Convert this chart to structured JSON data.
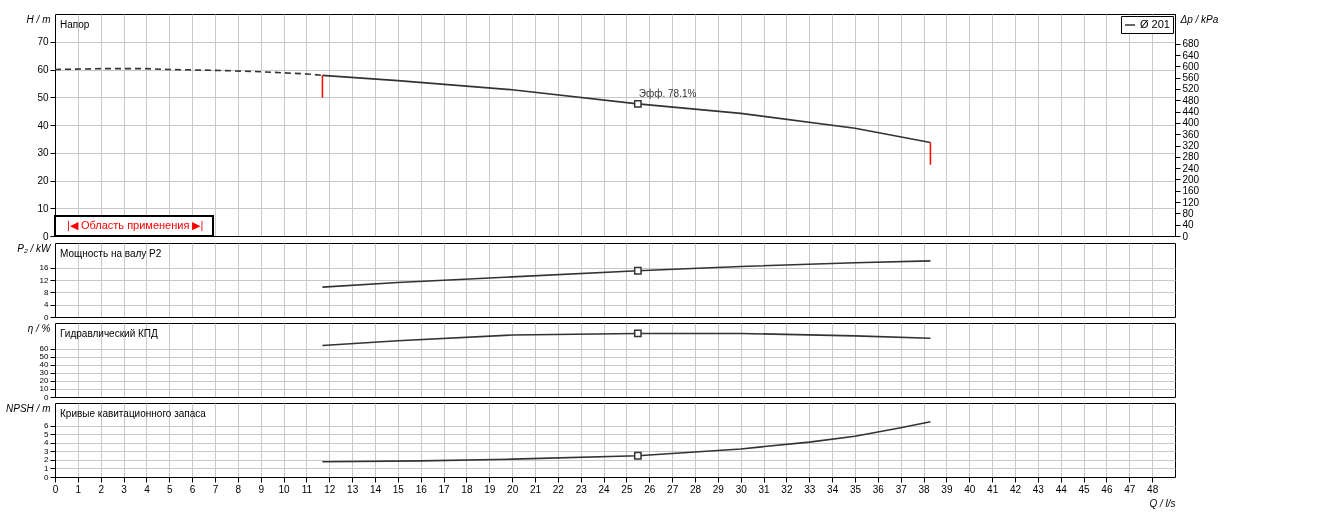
{
  "chart_data": [
    {
      "type": "line",
      "title": "Напор",
      "ylabel": "H / m",
      "y2label": "Δp / kPa",
      "xlim": [
        0,
        49
      ],
      "xticks": [
        0,
        1,
        2,
        3,
        4,
        5,
        6,
        7,
        8,
        9,
        10,
        11,
        12,
        13,
        14,
        15,
        16,
        17,
        18,
        19,
        20,
        21,
        22,
        23,
        24,
        25,
        26,
        27,
        28,
        29,
        30,
        31,
        32,
        33,
        34,
        35,
        36,
        37,
        38,
        39,
        40,
        41,
        42,
        43,
        44,
        45,
        46,
        47,
        48
      ],
      "ylim": [
        0,
        80
      ],
      "yticks": [
        0,
        10,
        20,
        30,
        40,
        50,
        60,
        70
      ],
      "y2lim": [
        0,
        785
      ],
      "y2ticks": [
        0,
        40,
        80,
        120,
        160,
        200,
        240,
        280,
        320,
        360,
        400,
        440,
        480,
        520,
        560,
        600,
        640,
        680
      ],
      "grid": true,
      "legend": "top right",
      "tick_labels": "y",
      "series": [
        {
          "name": "Ø 201",
          "color": "#333333",
          "x": [
            11.7,
            15,
            20,
            25.5,
            30,
            35,
            38.3
          ],
          "values": [
            57.9,
            56.0,
            52.7,
            47.6,
            44.2,
            38.8,
            33.7
          ]
        },
        {
          "color": "#333333",
          "line_style": "dashed",
          "x": [
            0,
            2,
            4,
            5,
            7,
            9,
            11,
            11.7
          ],
          "values": [
            60.0,
            60.3,
            60.3,
            60.0,
            59.7,
            59.2,
            58.4,
            57.9
          ]
        },
        {
          "type": "scatter",
          "marker": "square",
          "color": "#333333",
          "x": [
            25.5
          ],
          "values": [
            47.6
          ]
        }
      ],
      "ref_lines": [
        {
          "axis": "x",
          "value": 11.7,
          "color": "#ff0000"
        },
        {
          "axis": "x",
          "value": 38.3,
          "color": "#ff0000"
        }
      ],
      "annotations": [
        {
          "text": "Эфф.  78.1%",
          "x": 25.5,
          "y": 47.6
        },
        "|◀ Область применения ▶|"
      ]
    },
    {
      "type": "line",
      "title": "Мощность на валу  P2",
      "ylabel": "P₂ / kW",
      "xlim": [
        0,
        49
      ],
      "xticks": [
        0,
        1,
        2,
        3,
        4,
        5,
        6,
        7,
        8,
        9,
        10,
        11,
        12,
        13,
        14,
        15,
        16,
        17,
        18,
        19,
        20,
        21,
        22,
        23,
        24,
        25,
        26,
        27,
        28,
        29,
        30,
        31,
        32,
        33,
        34,
        35,
        36,
        37,
        38,
        39,
        40,
        41,
        42,
        43,
        44,
        45,
        46,
        47,
        48
      ],
      "ylim": [
        0,
        24
      ],
      "yticks": [
        0,
        4,
        8,
        12,
        16
      ],
      "grid": true,
      "tick_labels": "y",
      "series": [
        {
          "color": "#333333",
          "x": [
            11.7,
            15,
            20,
            25.5,
            30,
            35,
            38.3
          ],
          "values": [
            9.7,
            11.2,
            13.0,
            15.0,
            16.4,
            17.6,
            18.2
          ]
        },
        {
          "type": "scatter",
          "marker": "square",
          "color": "#333333",
          "x": [
            25.5
          ],
          "values": [
            15.0
          ]
        }
      ]
    },
    {
      "type": "line",
      "title": "Гидравлический КПД",
      "ylabel": "η / %",
      "xlim": [
        0,
        49
      ],
      "xticks": [
        0,
        1,
        2,
        3,
        4,
        5,
        6,
        7,
        8,
        9,
        10,
        11,
        12,
        13,
        14,
        15,
        16,
        17,
        18,
        19,
        20,
        21,
        22,
        23,
        24,
        25,
        26,
        27,
        28,
        29,
        30,
        31,
        32,
        33,
        34,
        35,
        36,
        37,
        38,
        39,
        40,
        41,
        42,
        43,
        44,
        45,
        46,
        47,
        48
      ],
      "ylim": [
        0,
        92
      ],
      "yticks": [
        0,
        10,
        20,
        30,
        40,
        50,
        60
      ],
      "grid": true,
      "tick_labels": "y",
      "series": [
        {
          "color": "#333333",
          "x": [
            11.7,
            15,
            20,
            25.5,
            30,
            35,
            38.3
          ],
          "values": [
            64,
            70,
            77,
            79,
            79,
            76,
            73
          ]
        },
        {
          "type": "scatter",
          "marker": "square",
          "color": "#333333",
          "x": [
            25.5
          ],
          "values": [
            79
          ]
        }
      ]
    },
    {
      "type": "line",
      "title": "Кривые кавитационного запаса",
      "ylabel": "NPSH / m",
      "xlabel": "Q / l/s",
      "xlim": [
        0,
        49
      ],
      "xticks": [
        0,
        1,
        2,
        3,
        4,
        5,
        6,
        7,
        8,
        9,
        10,
        11,
        12,
        13,
        14,
        15,
        16,
        17,
        18,
        19,
        20,
        21,
        22,
        23,
        24,
        25,
        26,
        27,
        28,
        29,
        30,
        31,
        32,
        33,
        34,
        35,
        36,
        37,
        38,
        39,
        40,
        41,
        42,
        43,
        44,
        45,
        46,
        47,
        48
      ],
      "ylim": [
        0,
        8.7
      ],
      "yticks": [
        0,
        1,
        2,
        3,
        4,
        5,
        6
      ],
      "grid": true,
      "series": [
        {
          "color": "#333333",
          "x": [
            11.7,
            16,
            20,
            25.5,
            30,
            33,
            35,
            37,
            38.3
          ],
          "values": [
            1.8,
            1.9,
            2.1,
            2.5,
            3.3,
            4.1,
            4.8,
            5.8,
            6.5
          ]
        },
        {
          "type": "scatter",
          "marker": "square",
          "color": "#333333",
          "x": [
            25.5
          ],
          "values": [
            2.5
          ]
        }
      ]
    }
  ]
}
